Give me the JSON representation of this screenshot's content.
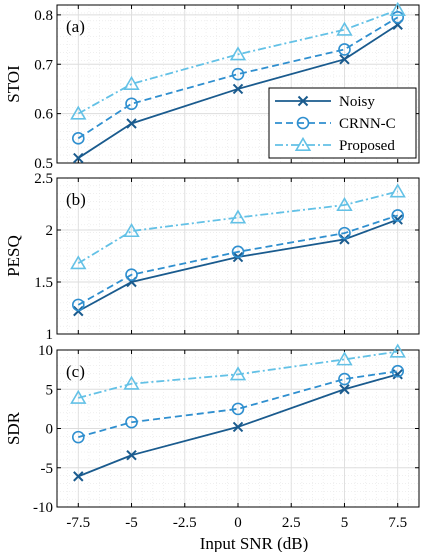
{
  "colors": {
    "noisy": "#1a5b8e",
    "crnn": "#2f8fcf",
    "proposed": "#63c1e6",
    "grid": "#dddddd"
  },
  "xlabel": "Input SNR (dB)",
  "x_tick_labels": [
    "-7.5",
    "-5",
    "-2.5",
    "0",
    "2.5",
    "5",
    "7.5"
  ],
  "legend": {
    "position": "inside, lower-right of panel (a)"
  },
  "chart_data": [
    {
      "type": "line",
      "panel_label": "(a)",
      "ylabel": "STOI",
      "x": [
        -7.5,
        -5,
        0,
        5,
        7.5
      ],
      "xlim": [
        -8.5,
        8.5
      ],
      "ylim": [
        0.5,
        0.82
      ],
      "y_ticks": [
        0.5,
        0.6,
        0.7,
        0.8
      ],
      "y_tick_labels": [
        "0.5",
        "0.6",
        "0.7",
        "0.8"
      ],
      "grid": true,
      "series": [
        {
          "name": "Noisy",
          "marker": "x",
          "linestyle": "solid",
          "values": [
            0.51,
            0.58,
            0.65,
            0.71,
            0.78
          ]
        },
        {
          "name": "CRNN-C",
          "marker": "o",
          "linestyle": "dashed",
          "values": [
            0.55,
            0.62,
            0.68,
            0.73,
            0.795
          ]
        },
        {
          "name": "Proposed",
          "marker": "^",
          "linestyle": "dashdot",
          "values": [
            0.6,
            0.66,
            0.72,
            0.77,
            0.81
          ]
        }
      ]
    },
    {
      "type": "line",
      "panel_label": "(b)",
      "ylabel": "PESQ",
      "x": [
        -7.5,
        -5,
        0,
        5,
        7.5
      ],
      "xlim": [
        -8.5,
        8.5
      ],
      "ylim": [
        1,
        2.5
      ],
      "y_ticks": [
        1,
        1.5,
        2,
        2.5
      ],
      "y_tick_labels": [
        "1",
        "1.5",
        "2",
        "2.5"
      ],
      "grid": true,
      "series": [
        {
          "name": "Noisy",
          "marker": "x",
          "linestyle": "solid",
          "values": [
            1.22,
            1.5,
            1.74,
            1.91,
            2.1
          ]
        },
        {
          "name": "CRNN-C",
          "marker": "o",
          "linestyle": "dashed",
          "values": [
            1.28,
            1.57,
            1.79,
            1.97,
            2.14
          ]
        },
        {
          "name": "Proposed",
          "marker": "^",
          "linestyle": "dashdot",
          "values": [
            1.68,
            1.99,
            2.12,
            2.24,
            2.37
          ]
        }
      ]
    },
    {
      "type": "line",
      "panel_label": "(c)",
      "ylabel": "SDR",
      "x": [
        -7.5,
        -5,
        0,
        5,
        7.5
      ],
      "xlim": [
        -8.5,
        8.5
      ],
      "ylim": [
        -10,
        10
      ],
      "y_ticks": [
        -10,
        -5,
        0,
        5,
        10
      ],
      "y_tick_labels": [
        "-10",
        "-5",
        "0",
        "5",
        "10"
      ],
      "grid": true,
      "series": [
        {
          "name": "Noisy",
          "marker": "x",
          "linestyle": "solid",
          "values": [
            -6.1,
            -3.4,
            0.2,
            5.0,
            6.9
          ]
        },
        {
          "name": "CRNN-C",
          "marker": "o",
          "linestyle": "dashed",
          "values": [
            -1.1,
            0.8,
            2.5,
            6.3,
            7.3
          ]
        },
        {
          "name": "Proposed",
          "marker": "^",
          "linestyle": "dashdot",
          "values": [
            3.9,
            5.7,
            6.9,
            8.8,
            9.8
          ]
        }
      ]
    }
  ]
}
